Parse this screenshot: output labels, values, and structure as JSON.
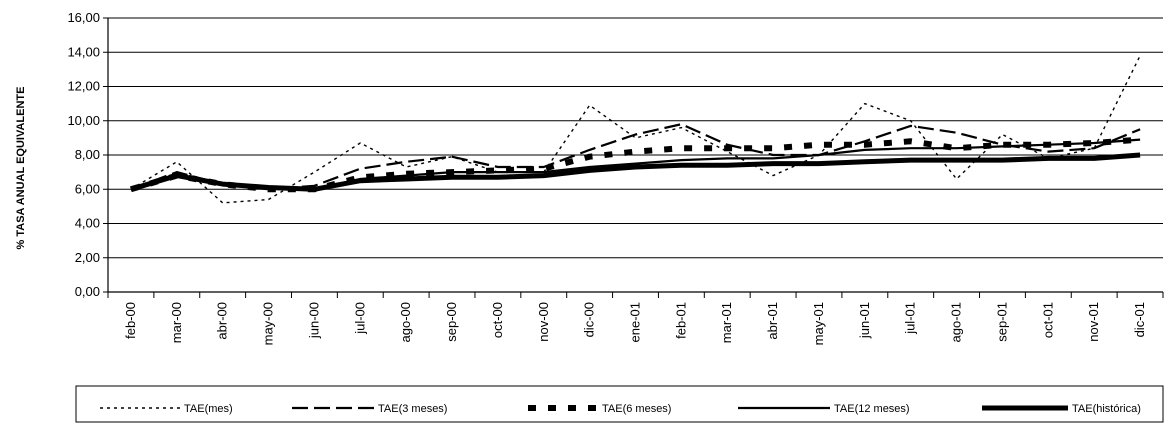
{
  "chart_data": {
    "type": "line",
    "title": "",
    "xlabel": "",
    "ylabel": "% TASA ANUAL EQUIVALENTE",
    "categories": [
      "feb-00",
      "mar-00",
      "abr-00",
      "may-00",
      "jun-00",
      "jul-00",
      "ago-00",
      "sep-00",
      "oct-00",
      "nov-00",
      "dic-00",
      "ene-01",
      "feb-01",
      "mar-01",
      "abr-01",
      "may-01",
      "jun-01",
      "jul-01",
      "ago-01",
      "sep-01",
      "oct-01",
      "nov-01",
      "dic-01"
    ],
    "ylim": [
      0,
      16
    ],
    "yticks": [
      0,
      2,
      4,
      6,
      8,
      10,
      12,
      14,
      16
    ],
    "ytick_labels": [
      "0,00",
      "2,00",
      "4,00",
      "6,00",
      "8,00",
      "10,00",
      "12,00",
      "14,00",
      "16,00"
    ],
    "grid": "horizontal",
    "legend_position": "bottom",
    "series": [
      {
        "name": "TAE(mes)",
        "style": "dotted",
        "values": [
          6.0,
          7.6,
          5.2,
          5.4,
          7.0,
          8.7,
          7.3,
          7.9,
          7.0,
          7.0,
          10.9,
          9.0,
          9.6,
          8.2,
          6.8,
          8.0,
          11.0,
          10.0,
          6.6,
          9.2,
          7.8,
          8.4,
          13.8
        ]
      },
      {
        "name": "TAE(3 meses)",
        "style": "long-dash",
        "values": [
          6.0,
          7.0,
          6.3,
          6.0,
          6.2,
          7.2,
          7.6,
          7.9,
          7.3,
          7.3,
          8.3,
          9.2,
          9.8,
          8.6,
          8.0,
          8.0,
          8.8,
          9.7,
          9.3,
          8.6,
          8.2,
          8.4,
          9.5
        ]
      },
      {
        "name": "TAE(6 meses)",
        "style": "heavy-dash",
        "values": [
          6.0,
          6.8,
          6.3,
          6.0,
          6.0,
          6.7,
          6.9,
          7.0,
          7.1,
          7.2,
          7.9,
          8.2,
          8.4,
          8.4,
          8.4,
          8.6,
          8.6,
          8.8,
          8.4,
          8.6,
          8.6,
          8.7,
          8.9
        ]
      },
      {
        "name": "TAE(12 meses)",
        "style": "solid",
        "values": [
          6.0,
          6.8,
          6.3,
          6.1,
          6.0,
          6.6,
          6.8,
          7.0,
          7.0,
          7.0,
          7.3,
          7.5,
          7.7,
          7.8,
          7.8,
          8.0,
          8.3,
          8.4,
          8.4,
          8.5,
          8.6,
          8.7,
          8.9
        ]
      },
      {
        "name": "TAE(histórica)",
        "style": "thick-solid",
        "values": [
          6.0,
          6.8,
          6.3,
          6.1,
          6.0,
          6.5,
          6.6,
          6.7,
          6.7,
          6.8,
          7.1,
          7.3,
          7.4,
          7.4,
          7.5,
          7.5,
          7.6,
          7.7,
          7.7,
          7.7,
          7.8,
          7.8,
          8.0
        ]
      }
    ]
  },
  "colors": {
    "line": "#000000",
    "grid": "#000000",
    "background": "#ffffff"
  }
}
